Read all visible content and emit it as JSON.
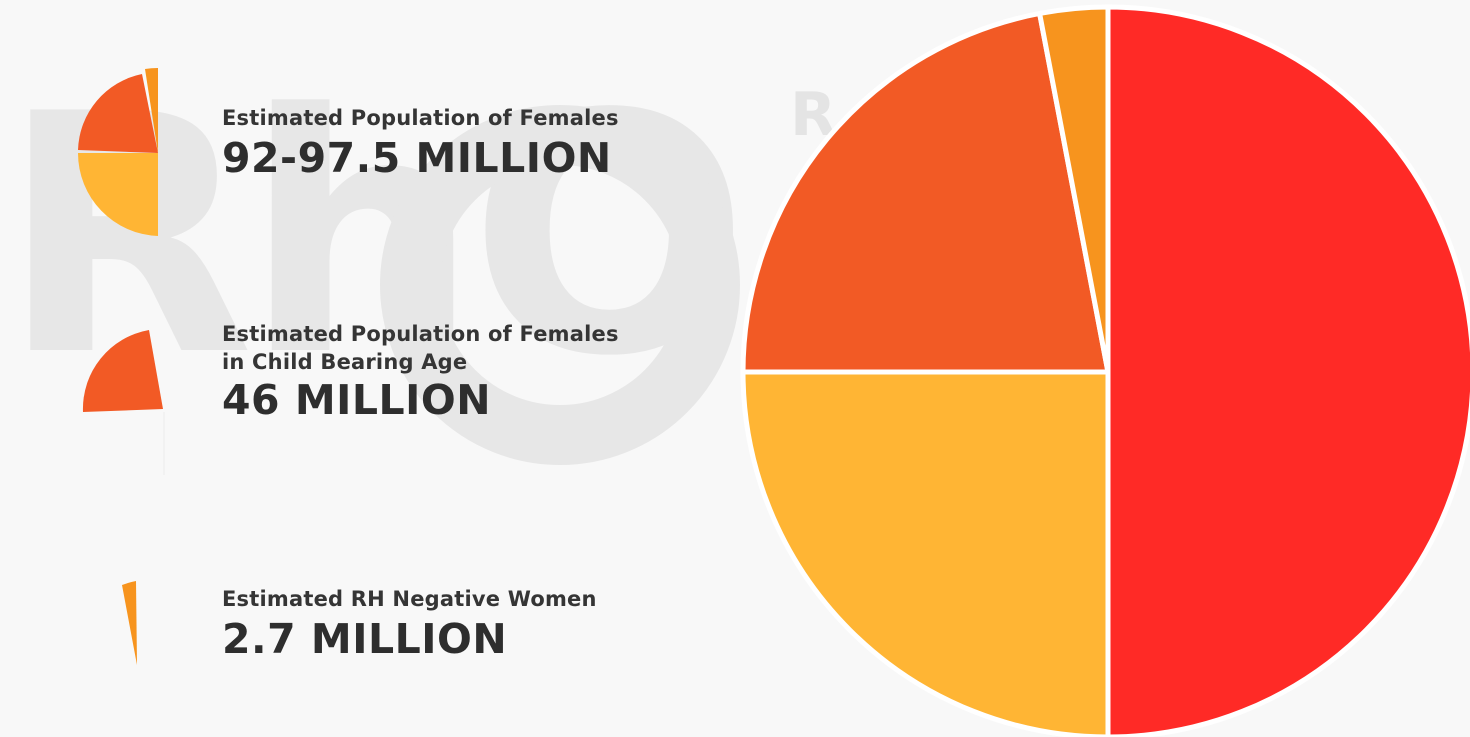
{
  "colors": {
    "background": "#f8f8f8",
    "watermark": "#e6e6e6",
    "red": "#ff2a26",
    "yellow": "#ffb534",
    "dark_orange": "#f25a25",
    "orange": "#f7941e"
  },
  "watermark": {
    "text": "RhO"
  },
  "legend": [
    {
      "label_line1": "Estimated Population of Females",
      "label_line2": "",
      "value": "92-97.5 MILLION",
      "icon": "pie-quarter-stack-icon"
    },
    {
      "label_line1": "Estimated Population of Females",
      "label_line2": "in Child Bearing Age",
      "value": "46 MILLION",
      "icon": "pie-wedge-icon"
    },
    {
      "label_line1": "Estimated RH Negative Women",
      "label_line2": "",
      "value": "2.7 MILLION",
      "icon": "pie-sliver-icon"
    }
  ],
  "chart_data": {
    "type": "pie",
    "title": "",
    "slices": [
      {
        "label": "",
        "value": 50.0,
        "color": "#ff2a26"
      },
      {
        "label": "",
        "value": 25.0,
        "color": "#ffb534"
      },
      {
        "label": "",
        "value": 22.0,
        "color": "#f25a25"
      },
      {
        "label": "",
        "value": 3.0,
        "color": "#f7941e"
      }
    ],
    "legend_entries": [
      "Estimated Population of Females",
      "Estimated Population of Females in Child Bearing Age",
      "Estimated RH Negative Women"
    ]
  }
}
